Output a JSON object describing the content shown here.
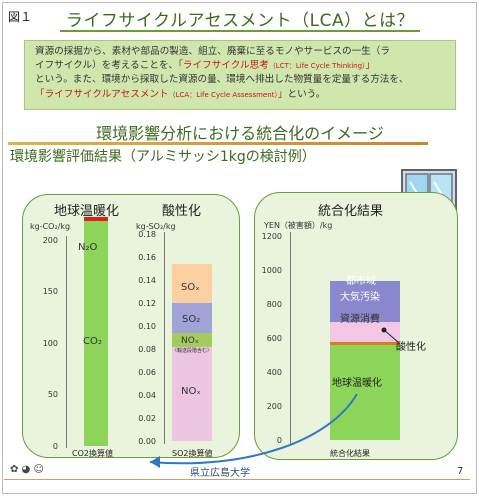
{
  "figure_label": "図１",
  "title": "ライフサイクルアセスメント（LCA）とは？",
  "intro": {
    "line1": "資源の採掘から、素材や部品の製造、組立、廃棄に至るモノやサービスの一生（ラ",
    "line2a": "イフサイクル）を考えることを、",
    "line2b": "「ライフサイクル思考",
    "line2c": "（LCT：Life Cycle Thinking）",
    "line2d": "」",
    "line3": "という。また、環境から採取した資源の量、環境へ排出した物質量を定量する方法を、",
    "line4a": "「ライフサイクルアセスメント",
    "line4b": "（LCA：Life Cycle Assessment）",
    "line4c": "」",
    "line4d": "という。"
  },
  "subtitle": "環境影響分析における統合化のイメージ",
  "eval_title": "環境影響評価結果（アルミサッシ1kgの検討例）",
  "panel_global": {
    "heading": "地球温暖化",
    "unit": "kg-CO₂/kg",
    "ticks": [
      "200",
      "150",
      "100",
      "50",
      "0"
    ],
    "caption": "CO2換算値",
    "segments": [
      {
        "label": "CO₂",
        "value": 220,
        "color": "#8cd45a"
      },
      {
        "label": "N₂O",
        "value": 4,
        "color": "#e02020"
      }
    ]
  },
  "panel_acid": {
    "heading": "酸性化",
    "unit": "kg-SO₂/kg",
    "ticks": [
      "0.18",
      "0.16",
      "0.14",
      "0.12",
      "0.10",
      "0.08",
      "0.06",
      "0.04",
      "0.02",
      "0.00"
    ],
    "caption": "SO2換算値",
    "segments": [
      {
        "label": "NOₓ",
        "value": 0.082,
        "color": "#ecc5e2"
      },
      {
        "label": "NOₓ",
        "sublabel": "（輸送段階含む）",
        "value": 0.012,
        "color": "#a2cc5e"
      },
      {
        "label": "SO₂",
        "value": 0.026,
        "color": "#9fa3d8"
      },
      {
        "label": "SOₓ",
        "value": 0.034,
        "color": "#fbcfa0"
      }
    ]
  },
  "panel_integrated": {
    "heading": "統合化結果",
    "unit": "YEN（被害額）/kg",
    "ticks": [
      "1200",
      "1000",
      "800",
      "600",
      "400",
      "200",
      "0"
    ],
    "caption": "統合化結果",
    "segments": [
      {
        "label": "地球温暖化",
        "value": 560,
        "color": "#8cd45a"
      },
      {
        "label": "酸性化",
        "value": 16,
        "color": "#e07a20"
      },
      {
        "label": "資源消費",
        "value": 120,
        "color": "#f4c6e6"
      },
      {
        "label": "大気汚染・都市域",
        "value": 240,
        "color": "#8a88cc"
      }
    ],
    "urban_label": "都市域",
    "air_label": "大気汚染",
    "acid_label": "酸性化"
  },
  "footer": {
    "page_number": "7",
    "school": "県立広島大学"
  }
}
